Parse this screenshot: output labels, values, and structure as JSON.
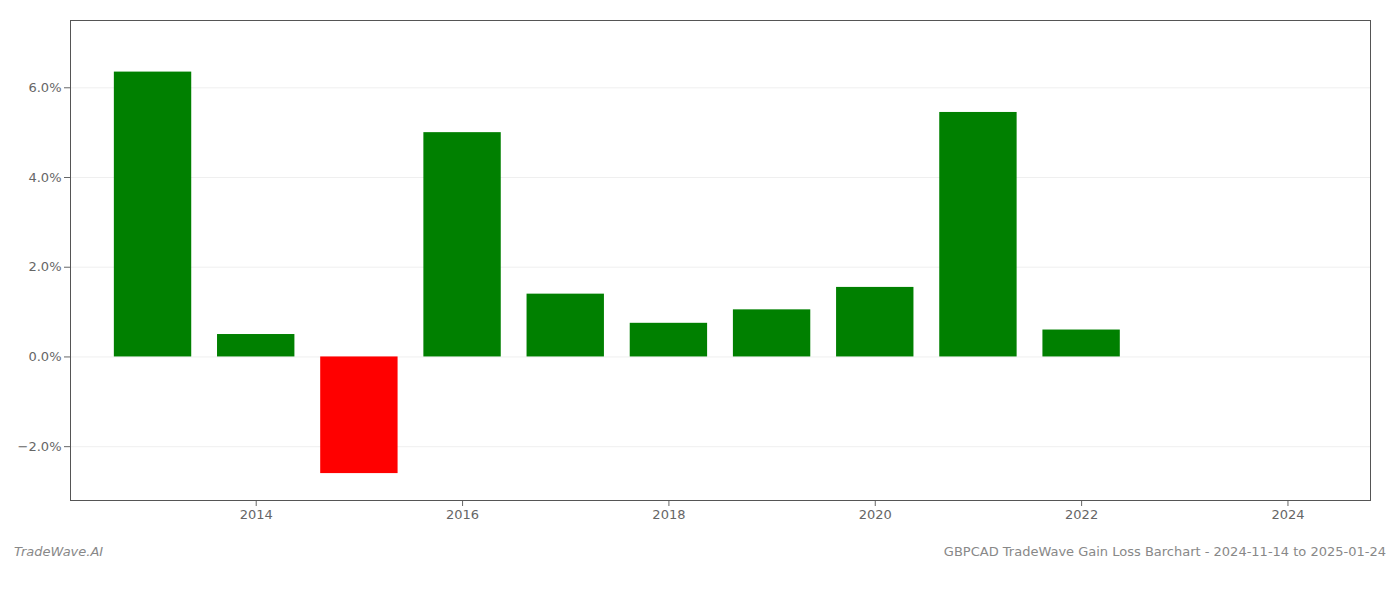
{
  "chart_data": {
    "type": "bar",
    "title": "GBPCAD TradeWave Gain Loss Barchart - 2024-11-14 to 2025-01-24",
    "annotations": [
      "TradeWave.AI"
    ],
    "x": [
      2013,
      2014,
      2015,
      2016,
      2017,
      2018,
      2019,
      2020,
      2021,
      2022,
      2023
    ],
    "values": [
      6.35,
      0.5,
      -2.6,
      5.0,
      1.4,
      0.75,
      1.05,
      1.55,
      5.45,
      0.6,
      0.0
    ],
    "colors": [
      "#008000",
      "#008000",
      "#ff0000",
      "#008000",
      "#008000",
      "#008000",
      "#008000",
      "#008000",
      "#008000",
      "#008000",
      "#ffffff"
    ],
    "xlim": [
      2012.2,
      2024.8
    ],
    "xticks": [
      2014,
      2016,
      2018,
      2020,
      2022,
      2024
    ],
    "ylim": [
      -3.2,
      7.5
    ],
    "yticks": [
      {
        "value": -2.0,
        "label": "−2.0%"
      },
      {
        "value": 0.0,
        "label": "0.0%"
      },
      {
        "value": 2.0,
        "label": "2.0%"
      },
      {
        "value": 4.0,
        "label": "4.0%"
      },
      {
        "value": 6.0,
        "label": "6.0%"
      }
    ],
    "grid": true
  }
}
